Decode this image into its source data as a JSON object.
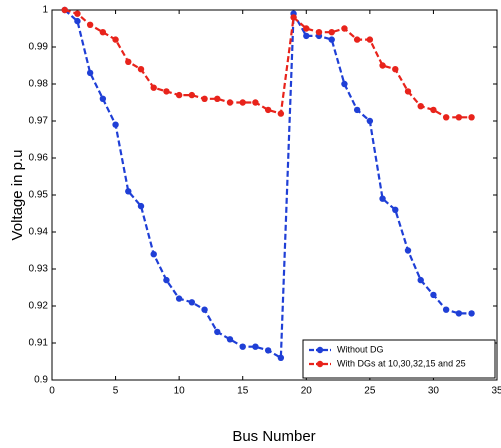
{
  "chart_data": {
    "type": "line",
    "xlabel": "Bus Number",
    "ylabel": "Voltage in p.u",
    "x": [
      1,
      2,
      3,
      4,
      5,
      6,
      7,
      8,
      9,
      10,
      11,
      12,
      13,
      14,
      15,
      16,
      17,
      18,
      19,
      20,
      21,
      22,
      23,
      24,
      25,
      26,
      27,
      28,
      29,
      30,
      31,
      32,
      33
    ],
    "series": [
      {
        "name": "Without DG",
        "color": "#1f3fd6",
        "values": [
          1.0,
          0.997,
          0.983,
          0.976,
          0.969,
          0.951,
          0.947,
          0.934,
          0.927,
          0.922,
          0.921,
          0.919,
          0.913,
          0.911,
          0.909,
          0.909,
          0.908,
          0.906,
          0.999,
          0.993,
          0.993,
          0.992,
          0.98,
          0.973,
          0.97,
          0.949,
          0.946,
          0.935,
          0.927,
          0.923,
          0.919,
          0.918,
          0.918
        ]
      },
      {
        "name": "With DGs at 10,30,32,15 and 25",
        "color": "#e8231b",
        "values": [
          1.0,
          0.999,
          0.996,
          0.994,
          0.992,
          0.986,
          0.984,
          0.979,
          0.978,
          0.977,
          0.977,
          0.976,
          0.976,
          0.975,
          0.975,
          0.975,
          0.973,
          0.972,
          0.998,
          0.995,
          0.994,
          0.994,
          0.995,
          0.992,
          0.992,
          0.985,
          0.984,
          0.978,
          0.974,
          0.973,
          0.971,
          0.971,
          0.971
        ]
      }
    ],
    "xlim": [
      0,
      35
    ],
    "xticks": [
      0,
      5,
      10,
      15,
      20,
      25,
      30,
      35
    ],
    "ylim": [
      0.9,
      1
    ],
    "yticks": [
      0.9,
      0.91,
      0.92,
      0.93,
      0.94,
      0.95,
      0.96,
      0.97,
      0.98,
      0.99,
      1
    ],
    "legend": "lower right"
  }
}
